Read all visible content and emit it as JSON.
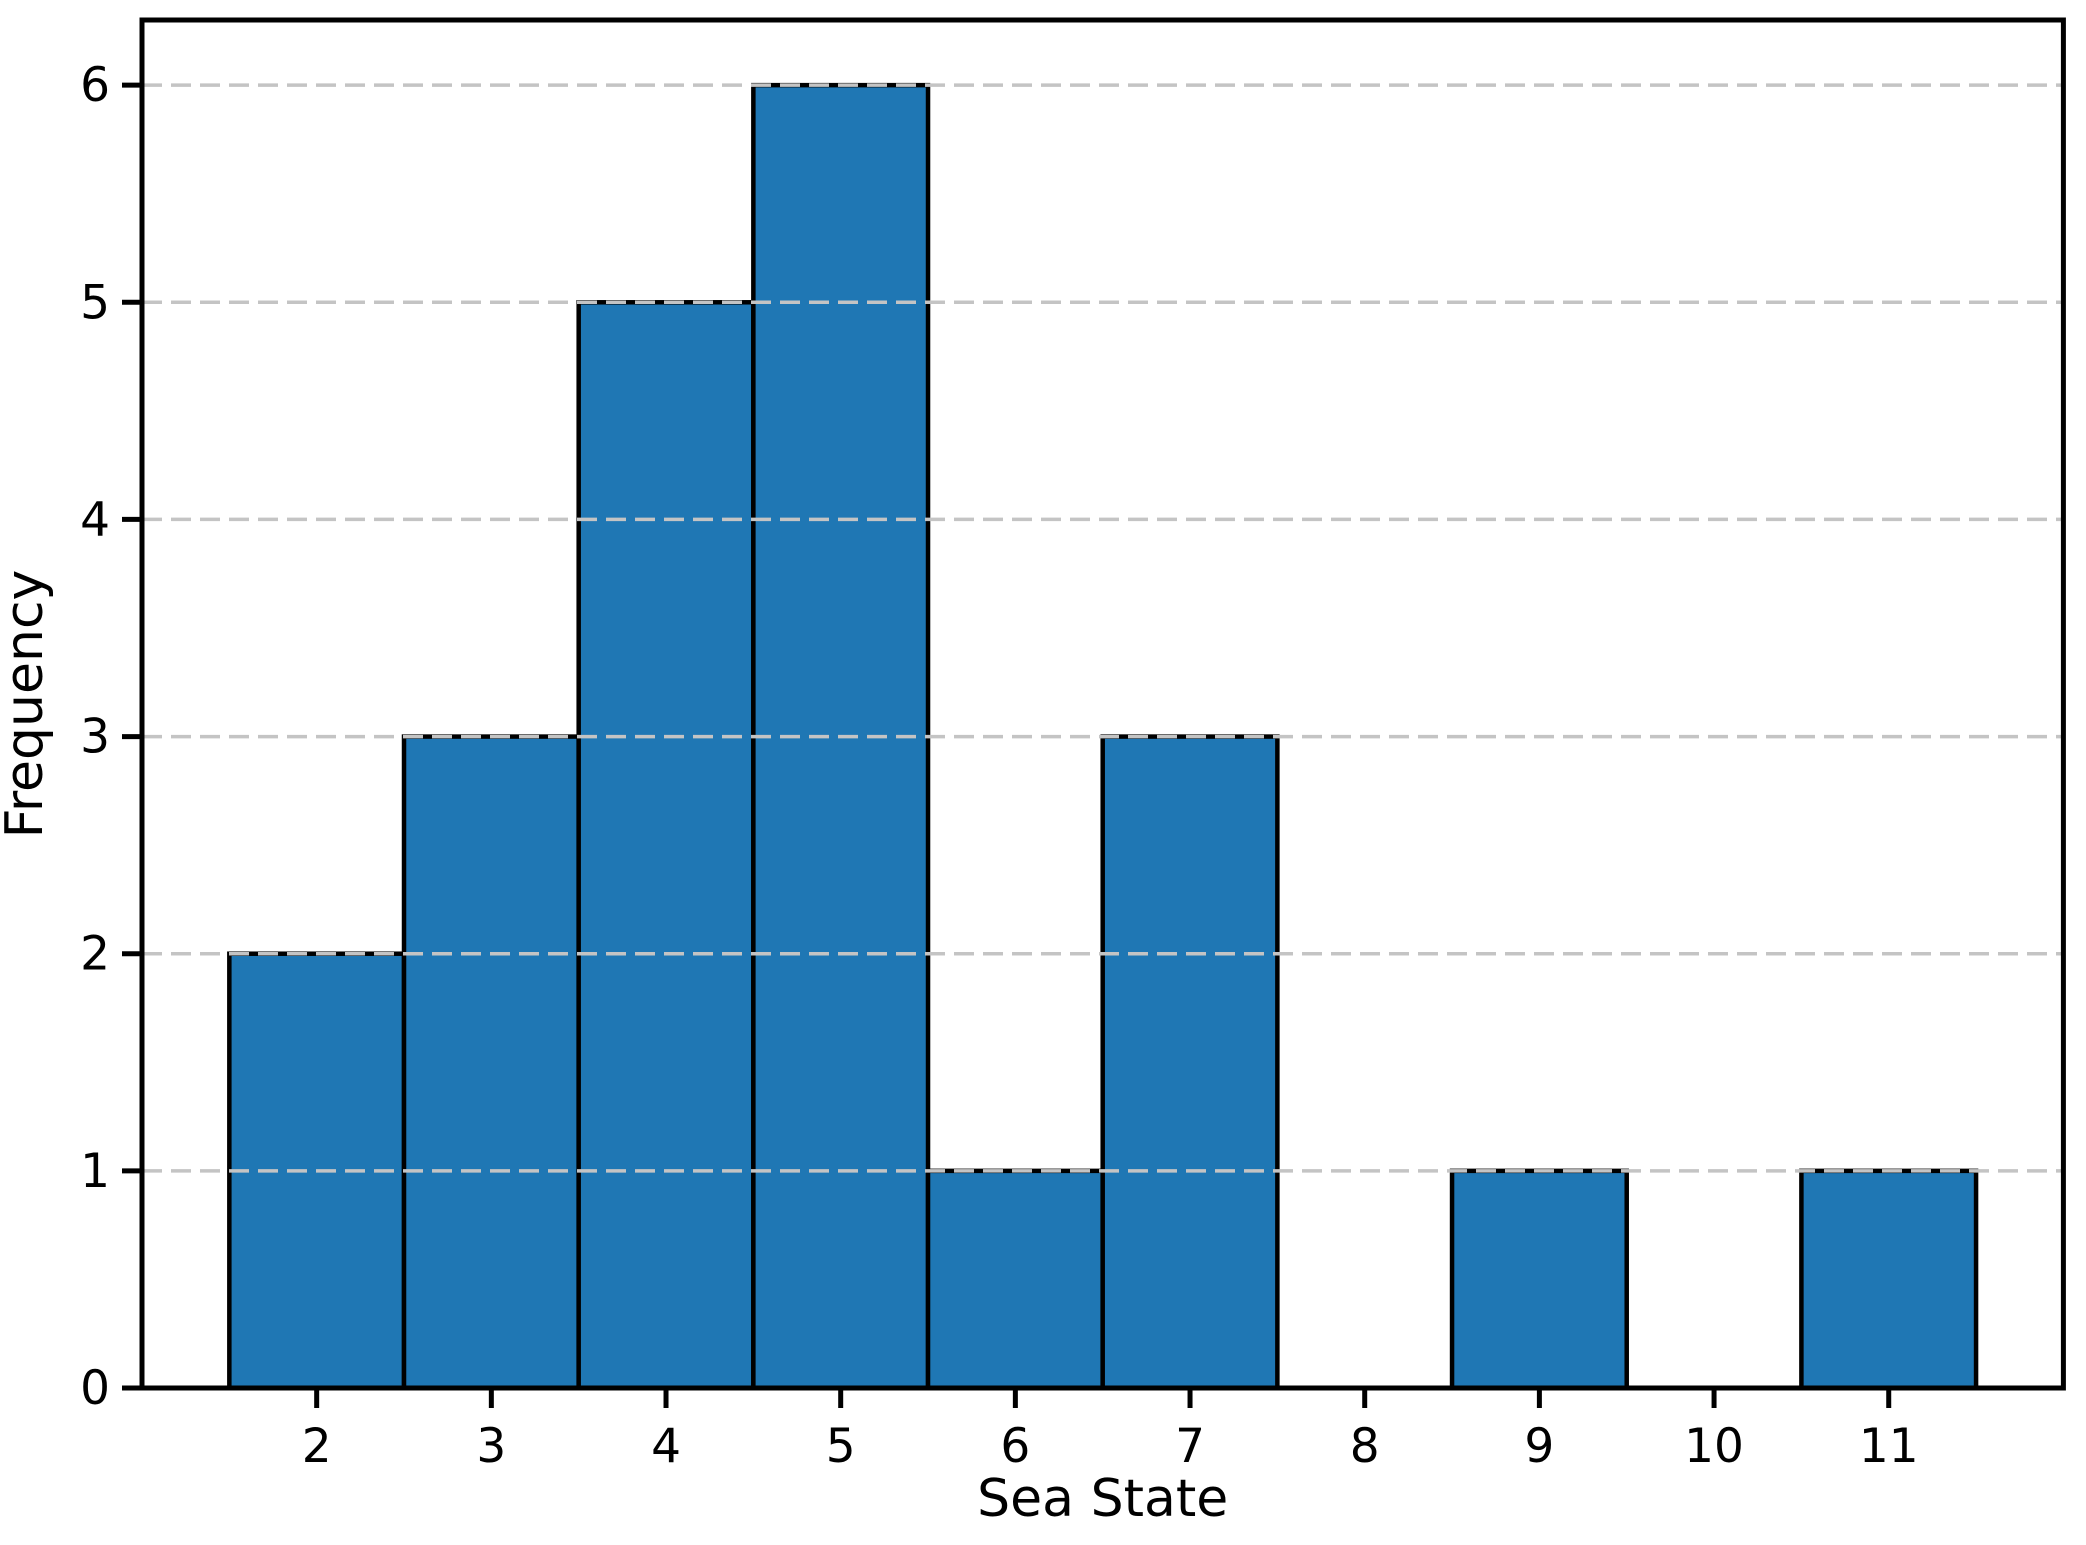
{
  "chart_data": {
    "type": "bar",
    "title": "",
    "xlabel": "Sea State",
    "ylabel": "Frequency",
    "categories": [
      2,
      3,
      4,
      5,
      6,
      7,
      8,
      9,
      10,
      11
    ],
    "values": [
      2,
      3,
      5,
      6,
      1,
      3,
      0,
      1,
      0,
      1
    ],
    "xticks": [
      2,
      3,
      4,
      5,
      6,
      7,
      8,
      9,
      10,
      11
    ],
    "yticks": [
      0,
      1,
      2,
      3,
      4,
      5,
      6
    ],
    "xlim": [
      1.0,
      12.0
    ],
    "ylim": [
      0,
      6.3
    ],
    "bar_width": 1.0,
    "bar_color": "#1f77b4",
    "bar_edge_color": "#000000",
    "grid": "horizontal-dashed",
    "grid_color": "#c4c4c4",
    "axis_color": "#000000",
    "legend": "none"
  }
}
